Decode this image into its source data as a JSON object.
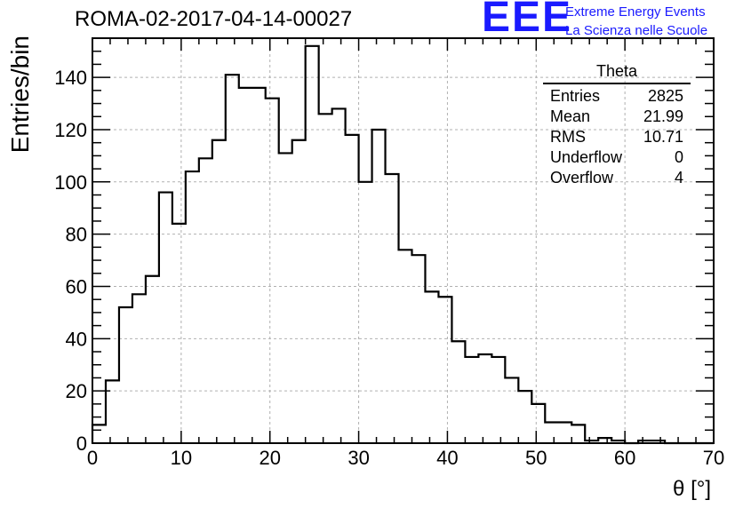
{
  "header": {
    "run_title": "ROMA-02-2017-04-14-00027",
    "logo_mark": "EEE",
    "logo_line1": "Extreme Energy Events",
    "logo_line2": "La Scienza nelle Scuole",
    "logo_color": "#1a1aff"
  },
  "stats_box": {
    "title": "Theta",
    "rows": [
      {
        "label": "Entries",
        "value": "2825"
      },
      {
        "label": "Mean",
        "value": "21.99"
      },
      {
        "label": "RMS",
        "value": "10.71"
      },
      {
        "label": "Underflow",
        "value": "0"
      },
      {
        "label": "Overflow",
        "value": "4"
      }
    ]
  },
  "chart_data": {
    "type": "bar",
    "histogram": true,
    "xlabel": "θ [°]",
    "ylabel": "Entries/bin",
    "xlim": [
      0,
      70
    ],
    "ylim": [
      0,
      155
    ],
    "xticks": [
      0,
      10,
      20,
      30,
      40,
      50,
      60,
      70
    ],
    "yticks": [
      0,
      20,
      40,
      60,
      80,
      100,
      120,
      140
    ],
    "grid": true,
    "bin_width": 1.5,
    "bin_start": 0,
    "values": [
      7,
      24,
      52,
      57,
      64,
      96,
      84,
      104,
      109,
      116,
      141,
      136,
      136,
      132,
      111,
      116,
      152,
      126,
      128,
      118,
      100,
      120,
      103,
      74,
      72,
      58,
      56,
      39,
      33,
      34,
      33,
      25,
      20,
      15,
      8,
      8,
      7,
      1,
      2,
      1,
      0,
      1,
      1,
      0,
      0,
      0,
      0
    ],
    "line_color": "#000000",
    "grid_color": "#b0b0b0"
  }
}
